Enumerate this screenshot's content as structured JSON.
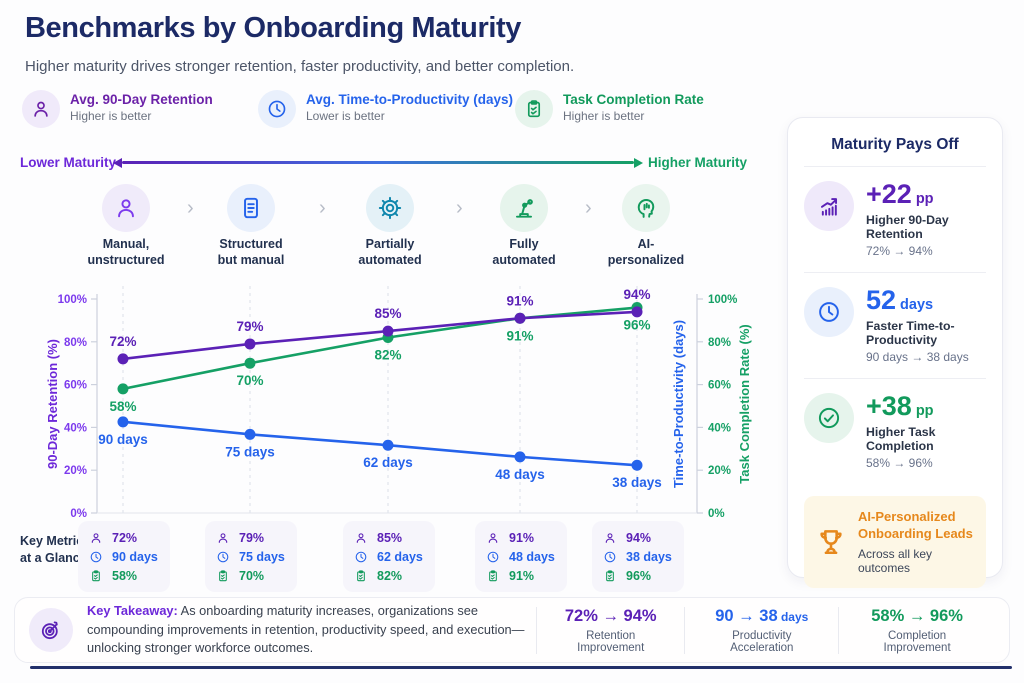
{
  "header": {
    "title": "Benchmarks by Onboarding Maturity",
    "subtitle": "Higher maturity drives stronger retention, faster productivity, and better completion."
  },
  "legend": {
    "items": [
      {
        "icon": "person-icon",
        "title": "Avg. 90-Day Retention",
        "note": "Higher is better",
        "color": "#6b21a8",
        "bg": "#f0eafa"
      },
      {
        "icon": "clock-icon",
        "title": "Avg. Time-to-Productivity (days)",
        "note": "Lower is better",
        "color": "#2563eb",
        "bg": "#e9f0fc"
      },
      {
        "icon": "clipboard-check-icon",
        "title": "Task Completion Rate",
        "note": "Higher is better",
        "color": "#129a5c",
        "bg": "#e6f4ec"
      }
    ]
  },
  "maturity_axis": {
    "left_label": "Lower Maturity",
    "right_label": "Higher Maturity",
    "left_color": "#6d28d9",
    "right_color": "#15a065"
  },
  "stages": [
    {
      "label": "Manual,\nunstructured",
      "icon": "person-icon",
      "color": "#7c3aed",
      "bg": "#f0ebfa"
    },
    {
      "label": "Structured\nbut manual",
      "icon": "document-icon",
      "color": "#2563eb",
      "bg": "#e9f0fc"
    },
    {
      "label": "Partially\nautomated",
      "icon": "gear-icon",
      "color": "#0e86ad",
      "bg": "#e4f1f7"
    },
    {
      "label": "Fully\nautomated",
      "icon": "robot-arm-icon",
      "color": "#129a5c",
      "bg": "#e6f4ec"
    },
    {
      "label": "AI-\npersonalized",
      "icon": "ai-head-icon",
      "color": "#129a5c",
      "bg": "#e9f5ee"
    }
  ],
  "chart_data": {
    "type": "line",
    "categories": [
      "Manual, unstructured",
      "Structured but manual",
      "Partially automated",
      "Fully automated",
      "AI-personalized"
    ],
    "series": [
      {
        "name": "Avg. Time-to-Productivity",
        "unit": "days",
        "color": "#2563eb",
        "values": [
          90,
          75,
          62,
          48,
          38
        ],
        "labels": [
          "90 days",
          "75 days",
          "62 days",
          "48 days",
          "38 days"
        ],
        "label_side": "below"
      },
      {
        "name": "Task Completion Rate",
        "unit": "%",
        "color": "#15a065",
        "values": [
          58,
          70,
          82,
          91,
          96
        ],
        "labels": [
          "58%",
          "70%",
          "82%",
          "91%",
          "96%"
        ],
        "label_side": "below"
      },
      {
        "name": "Avg. 90-Day Retention",
        "unit": "%",
        "color": "#5b21b6",
        "values": [
          72,
          79,
          85,
          91,
          94
        ],
        "labels": [
          "72%",
          "79%",
          "85%",
          "91%",
          "94%"
        ],
        "label_side": "above"
      }
    ],
    "left_axis": {
      "label": "90-Day Retention (%)",
      "color": "#6d28d9",
      "ticks": [
        "0%",
        "20%",
        "40%",
        "60%",
        "80%",
        "100%"
      ],
      "range": [
        0,
        100
      ]
    },
    "right_axis": {
      "label_inner": "Time-to-Productivity (days)",
      "label_inner_color": "#2563eb",
      "label_outer": "Task Completion Rate (%)",
      "label_outer_color": "#15a065",
      "ticks": [
        "0%",
        "20%",
        "40%",
        "60%",
        "80%",
        "100%"
      ],
      "range": [
        0,
        100
      ]
    },
    "grid": "vertical-dashed",
    "legend_position": "top-header"
  },
  "key_metrics": {
    "label": "Key Metrics\nat a Glance",
    "cards": [
      {
        "retention": "72%",
        "time": "90 days",
        "completion": "58%"
      },
      {
        "retention": "79%",
        "time": "75 days",
        "completion": "70%"
      },
      {
        "retention": "85%",
        "time": "62 days",
        "completion": "82%"
      },
      {
        "retention": "91%",
        "time": "48 days",
        "completion": "91%"
      },
      {
        "retention": "94%",
        "time": "38 days",
        "completion": "96%"
      }
    ],
    "row_colors": {
      "retention": "#5b21b6",
      "time": "#2563eb",
      "completion": "#129a5c"
    }
  },
  "sidebar": {
    "title": "Maturity Pays Off",
    "stats": [
      {
        "icon": "trend-up-icon",
        "color": "#5b21b6",
        "bg": "#efe9fa",
        "value": "+22",
        "unit": "pp",
        "label": "Higher 90-Day Retention",
        "range": "72% → 94%"
      },
      {
        "icon": "clock-icon",
        "color": "#2563eb",
        "bg": "#e9f0fc",
        "value": "52",
        "unit": "days",
        "label": "Faster Time-to-Productivity",
        "range": "90 days → 38 days"
      },
      {
        "icon": "check-circle-icon",
        "color": "#129a5c",
        "bg": "#e6f4ec",
        "value": "+38",
        "unit": "pp",
        "label": "Higher Task Completion",
        "range": "58% → 96%"
      }
    ],
    "highlight": {
      "icon": "trophy-icon",
      "color": "#e6881c",
      "bg": "#fdf7e6",
      "title": "AI-Personalized Onboarding Leads",
      "note": "Across all key outcomes"
    }
  },
  "takeaway": {
    "icon": "target-icon",
    "heading": "Key Takeaway:",
    "text": " As onboarding maturity increases, organizations see compounding improvements in retention, productivity speed, and execution—unlocking stronger workforce outcomes.",
    "stats": [
      {
        "value": "72% → 94%",
        "unit": "",
        "label": "Retention Improvement",
        "color": "#5b21b6"
      },
      {
        "value": "90 → 38",
        "unit": " days",
        "label": "Productivity Acceleration",
        "color": "#2563eb"
      },
      {
        "value": "58% → 96%",
        "unit": "",
        "label": "Completion Improvement",
        "color": "#129a5c"
      }
    ]
  }
}
